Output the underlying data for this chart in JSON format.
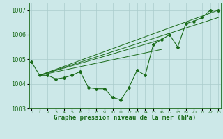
{
  "x": [
    0,
    1,
    2,
    3,
    4,
    5,
    6,
    7,
    8,
    9,
    10,
    11,
    12,
    13,
    14,
    15,
    16,
    17,
    18,
    19,
    20,
    21,
    22,
    23
  ],
  "pressure_main": [
    1004.9,
    1004.35,
    1004.35,
    1004.2,
    1004.25,
    1004.35,
    1004.5,
    1003.85,
    1003.8,
    1003.8,
    1003.45,
    1003.35,
    1003.85,
    1004.55,
    1004.35,
    1005.6,
    1005.8,
    1006.0,
    1005.5,
    1006.45,
    1006.55,
    1006.7,
    1007.0,
    1007.0
  ],
  "trend_lines": [
    {
      "x": [
        1,
        23
      ],
      "y": [
        1004.35,
        1007.0
      ]
    },
    {
      "x": [
        1,
        23
      ],
      "y": [
        1004.35,
        1006.7
      ]
    },
    {
      "x": [
        1,
        16
      ],
      "y": [
        1004.35,
        1005.8
      ]
    },
    {
      "x": [
        1,
        16
      ],
      "y": [
        1004.35,
        1005.4
      ]
    }
  ],
  "background_color": "#cce8e8",
  "line_color": "#1a6b1a",
  "grid_color": "#aacccc",
  "xlabel": "Graphe pression niveau de la mer (hPa)",
  "ylim": [
    1003.0,
    1007.3
  ],
  "xlim": [
    -0.3,
    23.3
  ],
  "yticks": [
    1003,
    1004,
    1005,
    1006,
    1007
  ],
  "xticks": [
    0,
    1,
    2,
    3,
    4,
    5,
    6,
    7,
    8,
    9,
    10,
    11,
    12,
    13,
    14,
    15,
    16,
    17,
    18,
    19,
    20,
    21,
    22,
    23
  ]
}
